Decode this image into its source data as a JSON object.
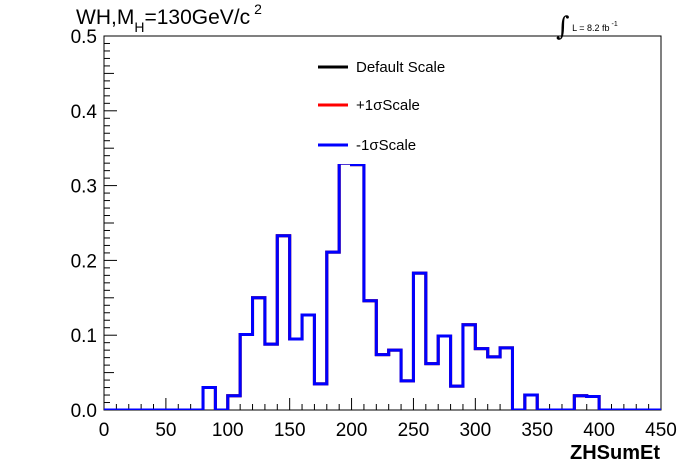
{
  "title": {
    "main": "WH,M",
    "subscript": "H",
    "rest": "=130GeV/c",
    "superscript": "2"
  },
  "luminosity": {
    "integral": "∫",
    "text": "L = 8.2 fb",
    "superscript": "-1"
  },
  "chart_data": {
    "type": "line",
    "step": true,
    "xlabel": "ZHSumEt",
    "ylabel": "",
    "xlim": [
      0,
      450
    ],
    "ylim": [
      0,
      0.5
    ],
    "grid": false,
    "legend_position": "top-center",
    "x_ticks": [
      "0",
      "50",
      "100",
      "150",
      "200",
      "250",
      "300",
      "350",
      "400",
      "450"
    ],
    "y_ticks": [
      "0.0",
      "0.1",
      "0.2",
      "0.3",
      "0.4",
      "0.5"
    ],
    "bin_edges": [
      0,
      10,
      20,
      30,
      40,
      50,
      60,
      70,
      80,
      90,
      100,
      110,
      120,
      130,
      140,
      150,
      160,
      170,
      180,
      190,
      200,
      210,
      220,
      230,
      240,
      250,
      260,
      270,
      280,
      290,
      300,
      310,
      320,
      330,
      340,
      350,
      360,
      370,
      380,
      390,
      400,
      410,
      420,
      430,
      440,
      450
    ],
    "series": [
      {
        "name": "Default Scale",
        "color": "#000000",
        "values": [
          0,
          0,
          0,
          0,
          0,
          0,
          0,
          0,
          0.03,
          0,
          0.019,
          0.101,
          0.15,
          0.088,
          0.233,
          0.095,
          0.127,
          0.035,
          0.211,
          0.33,
          0.328,
          0.146,
          0.074,
          0.08,
          0.039,
          0.183,
          0.062,
          0.099,
          0.032,
          0.114,
          0.082,
          0.071,
          0.083,
          0,
          0.02,
          0,
          0,
          0,
          0.019,
          0.018,
          0,
          0,
          0,
          0,
          0
        ]
      },
      {
        "name": "+1σScale",
        "color": "#ff0000",
        "values": [
          0,
          0,
          0,
          0,
          0,
          0,
          0,
          0,
          0.03,
          0,
          0.019,
          0.101,
          0.15,
          0.088,
          0.233,
          0.095,
          0.127,
          0.035,
          0.211,
          0.33,
          0.328,
          0.146,
          0.074,
          0.08,
          0.039,
          0.183,
          0.062,
          0.099,
          0.032,
          0.114,
          0.082,
          0.071,
          0.083,
          0,
          0.02,
          0,
          0,
          0,
          0.019,
          0.018,
          0,
          0,
          0,
          0,
          0
        ]
      },
      {
        "name": "-1σScale",
        "color": "#0000ff",
        "values": [
          0,
          0,
          0,
          0,
          0,
          0,
          0,
          0,
          0.03,
          0,
          0.019,
          0.101,
          0.15,
          0.088,
          0.233,
          0.095,
          0.127,
          0.035,
          0.211,
          0.33,
          0.328,
          0.146,
          0.074,
          0.08,
          0.039,
          0.183,
          0.062,
          0.099,
          0.032,
          0.114,
          0.082,
          0.071,
          0.083,
          0,
          0.02,
          0,
          0,
          0,
          0.019,
          0.018,
          0,
          0,
          0,
          0,
          0
        ]
      }
    ]
  }
}
